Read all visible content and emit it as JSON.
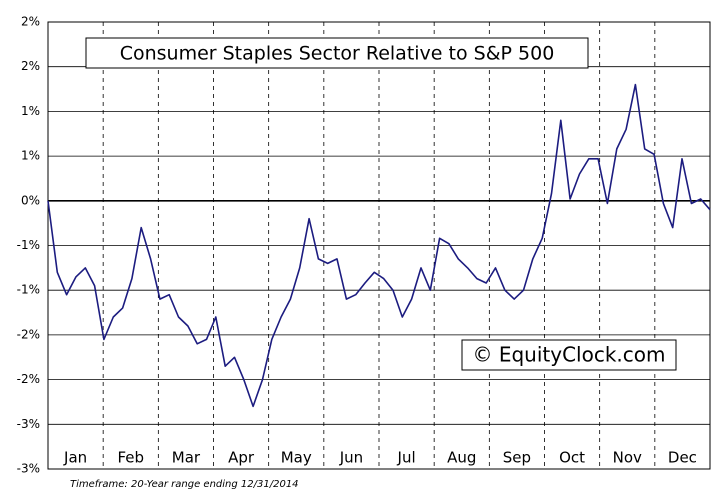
{
  "chart_data": {
    "type": "line",
    "title": "Consumer Staples Sector Relative to S&P 500",
    "watermark": "© EquityClock.com",
    "footnote": "Timeframe: 20-Year range ending 12/31/2014",
    "months": [
      "Jan",
      "Feb",
      "Mar",
      "Apr",
      "May",
      "Jun",
      "Jul",
      "Aug",
      "Sep",
      "Oct",
      "Nov",
      "Dec"
    ],
    "color": "#1c1c80",
    "grid": true,
    "ylim": [
      -3,
      2
    ],
    "yticks": [
      {
        "value": 2,
        "label": "2%"
      },
      {
        "value": 1.5,
        "label": "2%"
      },
      {
        "value": 1,
        "label": "1%"
      },
      {
        "value": 0.5,
        "label": "1%"
      },
      {
        "value": 0,
        "label": "0%"
      },
      {
        "value": -0.5,
        "label": "-1%"
      },
      {
        "value": -1,
        "label": "-1%"
      },
      {
        "value": -1.5,
        "label": "-2%"
      },
      {
        "value": -2,
        "label": "-2%"
      },
      {
        "value": -2.5,
        "label": "-3%"
      },
      {
        "value": -3,
        "label": "-3%"
      }
    ],
    "values": [
      0,
      -0.8,
      -1.05,
      -0.85,
      -0.75,
      -0.95,
      -1.55,
      -1.3,
      -1.2,
      -0.87,
      -0.3,
      -0.65,
      -1.1,
      -1.05,
      -1.3,
      -1.4,
      -1.6,
      -1.55,
      -1.3,
      -1.85,
      -1.75,
      -2.0,
      -2.3,
      -2.0,
      -1.55,
      -1.3,
      -1.1,
      -0.75,
      -0.2,
      -0.65,
      -0.7,
      -0.65,
      -1.1,
      -1.05,
      -0.92,
      -0.8,
      -0.87,
      -1.0,
      -1.3,
      -1.1,
      -0.75,
      -1.0,
      -0.42,
      -0.48,
      -0.65,
      -0.75,
      -0.87,
      -0.92,
      -0.75,
      -1.0,
      -1.1,
      -1.0,
      -0.65,
      -0.42,
      0.08,
      0.9,
      0.02,
      0.3,
      0.47,
      0.47,
      -0.03,
      0.58,
      0.8,
      1.3,
      0.58,
      0.52,
      -0.03,
      -0.3,
      0.47,
      -0.03,
      0.02,
      -0.1
    ]
  }
}
